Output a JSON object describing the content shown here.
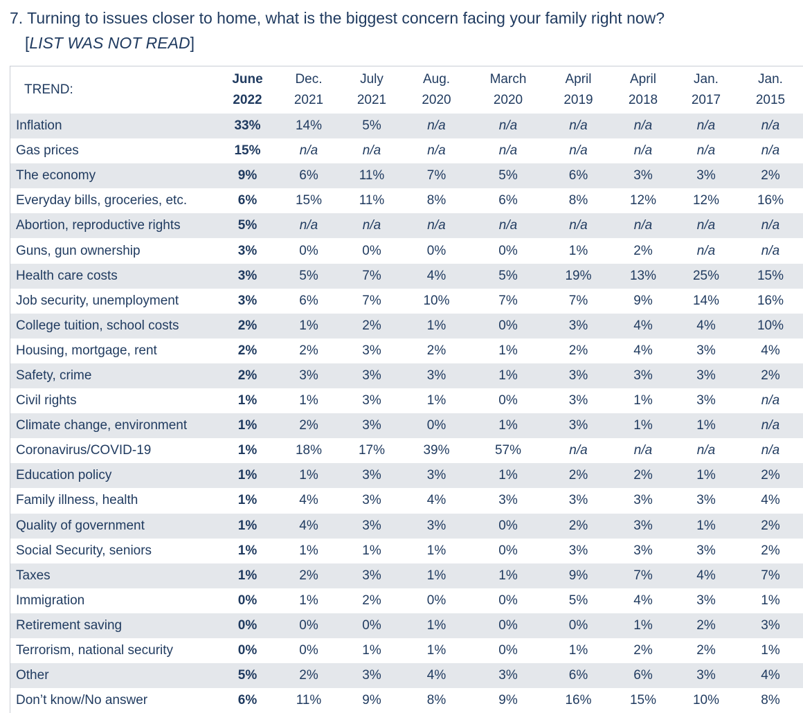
{
  "question": {
    "number": "7.",
    "text": "Turning to issues closer to home, what is the biggest concern facing your family right now?",
    "note_open": "[",
    "note": "LIST WAS NOT READ",
    "note_close": "]"
  },
  "table": {
    "corner_label": "TREND:",
    "columns": [
      {
        "line1": "June",
        "line2": "2022"
      },
      {
        "line1": "Dec.",
        "line2": "2021"
      },
      {
        "line1": "July",
        "line2": "2021"
      },
      {
        "line1": "Aug.",
        "line2": "2020"
      },
      {
        "line1": "March",
        "line2": "2020"
      },
      {
        "line1": "April",
        "line2": "2019"
      },
      {
        "line1": "April",
        "line2": "2018"
      },
      {
        "line1": "Jan.",
        "line2": "2017"
      },
      {
        "line1": "Jan.",
        "line2": "2015"
      }
    ],
    "rows": [
      {
        "label": "Inflation",
        "values": [
          "33%",
          "14%",
          "5%",
          "n/a",
          "n/a",
          "n/a",
          "n/a",
          "n/a",
          "n/a"
        ]
      },
      {
        "label": "Gas prices",
        "values": [
          "15%",
          "n/a",
          "n/a",
          "n/a",
          "n/a",
          "n/a",
          "n/a",
          "n/a",
          "n/a"
        ]
      },
      {
        "label": "The economy",
        "values": [
          "9%",
          "6%",
          "11%",
          "7%",
          "5%",
          "6%",
          "3%",
          "3%",
          "2%"
        ]
      },
      {
        "label": "Everyday bills, groceries, etc.",
        "values": [
          "6%",
          "15%",
          "11%",
          "8%",
          "6%",
          "8%",
          "12%",
          "12%",
          "16%"
        ]
      },
      {
        "label": "Abortion, reproductive rights",
        "values": [
          "5%",
          "n/a",
          "n/a",
          "n/a",
          "n/a",
          "n/a",
          "n/a",
          "n/a",
          "n/a"
        ]
      },
      {
        "label": "Guns, gun ownership",
        "values": [
          "3%",
          "0%",
          "0%",
          "0%",
          "0%",
          "1%",
          "2%",
          "n/a",
          "n/a"
        ]
      },
      {
        "label": "Health care costs",
        "values": [
          "3%",
          "5%",
          "7%",
          "4%",
          "5%",
          "19%",
          "13%",
          "25%",
          "15%"
        ]
      },
      {
        "label": "Job security, unemployment",
        "values": [
          "3%",
          "6%",
          "7%",
          "10%",
          "7%",
          "7%",
          "9%",
          "14%",
          "16%"
        ]
      },
      {
        "label": "College tuition, school costs",
        "values": [
          "2%",
          "1%",
          "2%",
          "1%",
          "0%",
          "3%",
          "4%",
          "4%",
          "10%"
        ]
      },
      {
        "label": "Housing, mortgage, rent",
        "values": [
          "2%",
          "2%",
          "3%",
          "2%",
          "1%",
          "2%",
          "4%",
          "3%",
          "4%"
        ]
      },
      {
        "label": "Safety, crime",
        "values": [
          "2%",
          "3%",
          "3%",
          "3%",
          "1%",
          "3%",
          "3%",
          "3%",
          "2%"
        ]
      },
      {
        "label": "Civil rights",
        "values": [
          "1%",
          "1%",
          "3%",
          "1%",
          "0%",
          "3%",
          "1%",
          "3%",
          "n/a"
        ]
      },
      {
        "label": "Climate change, environment",
        "values": [
          "1%",
          "2%",
          "3%",
          "0%",
          "1%",
          "3%",
          "1%",
          "1%",
          "n/a"
        ]
      },
      {
        "label": "Coronavirus/COVID-19",
        "values": [
          "1%",
          "18%",
          "17%",
          "39%",
          "57%",
          "n/a",
          "n/a",
          "n/a",
          "n/a"
        ]
      },
      {
        "label": "Education policy",
        "values": [
          "1%",
          "1%",
          "3%",
          "3%",
          "1%",
          "2%",
          "2%",
          "1%",
          "2%"
        ]
      },
      {
        "label": "Family illness, health",
        "values": [
          "1%",
          "4%",
          "3%",
          "4%",
          "3%",
          "3%",
          "3%",
          "3%",
          "4%"
        ]
      },
      {
        "label": "Quality of government",
        "values": [
          "1%",
          "4%",
          "3%",
          "3%",
          "0%",
          "2%",
          "3%",
          "1%",
          "2%"
        ]
      },
      {
        "label": "Social Security, seniors",
        "values": [
          "1%",
          "1%",
          "1%",
          "1%",
          "0%",
          "3%",
          "3%",
          "3%",
          "2%"
        ]
      },
      {
        "label": "Taxes",
        "values": [
          "1%",
          "2%",
          "3%",
          "1%",
          "1%",
          "9%",
          "7%",
          "4%",
          "7%"
        ]
      },
      {
        "label": "Immigration",
        "values": [
          "0%",
          "1%",
          "2%",
          "0%",
          "0%",
          "5%",
          "4%",
          "3%",
          "1%"
        ]
      },
      {
        "label": "Retirement saving",
        "values": [
          "0%",
          "0%",
          "0%",
          "1%",
          "0%",
          "0%",
          "1%",
          "2%",
          "3%"
        ]
      },
      {
        "label": "Terrorism, national security",
        "values": [
          "0%",
          "0%",
          "1%",
          "1%",
          "0%",
          "1%",
          "2%",
          "2%",
          "1%"
        ]
      },
      {
        "label": "Other",
        "values": [
          "5%",
          "2%",
          "3%",
          "4%",
          "3%",
          "6%",
          "6%",
          "3%",
          "4%"
        ]
      },
      {
        "label": "Don’t know/No answer",
        "values": [
          "6%",
          "11%",
          "9%",
          "8%",
          "9%",
          "16%",
          "15%",
          "10%",
          "8%"
        ]
      }
    ]
  }
}
